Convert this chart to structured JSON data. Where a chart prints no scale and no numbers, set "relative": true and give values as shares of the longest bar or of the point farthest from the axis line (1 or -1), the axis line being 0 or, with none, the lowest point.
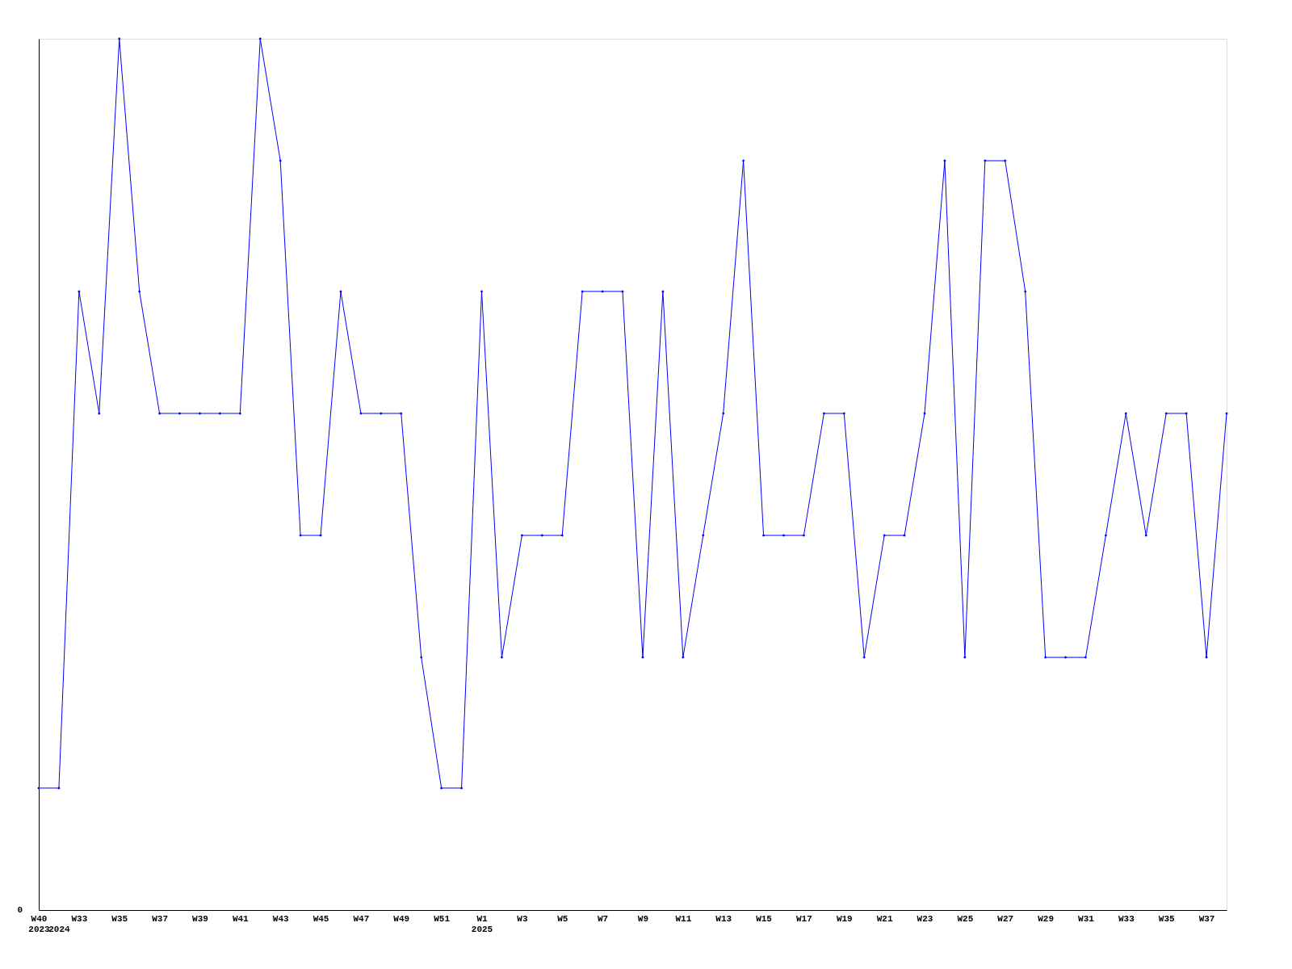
{
  "chart_data": {
    "type": "line",
    "relative": true,
    "marker": "diamond",
    "line_style": "solid",
    "grid": false,
    "categories": [
      "W40\n2023",
      "\n2024",
      "W33",
      null,
      "W35",
      null,
      "W37",
      null,
      "W39",
      null,
      "W41",
      null,
      "W43",
      null,
      "W45",
      null,
      "W47",
      null,
      "W49",
      null,
      "W51",
      null,
      "W1\n2025",
      null,
      "W3",
      null,
      "W5",
      null,
      "W7",
      null,
      "W9",
      null,
      "W11",
      null,
      "W13",
      null,
      "W15",
      null,
      "W17",
      null,
      "W19",
      null,
      "W21",
      null,
      "W23",
      null,
      "W25",
      null,
      "W27",
      null,
      "W29",
      null,
      "W31",
      null,
      "W33",
      null,
      "W35",
      null,
      "W37",
      null
    ],
    "series": [
      {
        "color": "#0000ff",
        "values": [
          0.14,
          0.14,
          0.71,
          0.57,
          1,
          0.71,
          0.57,
          0.57,
          0.57,
          0.57,
          0.57,
          1,
          0.86,
          0.43,
          0.43,
          0.71,
          0.57,
          0.57,
          0.57,
          0.29,
          0.14,
          0.14,
          0.71,
          0.29,
          0.43,
          0.43,
          0.43,
          0.71,
          0.71,
          0.71,
          0.29,
          0.71,
          0.29,
          0.43,
          0.57,
          0.86,
          0.43,
          0.43,
          0.43,
          0.57,
          0.57,
          0.29,
          0.43,
          0.43,
          0.57,
          0.86,
          0.29,
          0.86,
          0.86,
          0.71,
          0.29,
          0.29,
          0.29,
          0.43,
          0.57,
          0.43,
          0.57,
          0.57,
          0.29,
          0.57
        ]
      }
    ],
    "annotations": [
      "0"
    ]
  }
}
